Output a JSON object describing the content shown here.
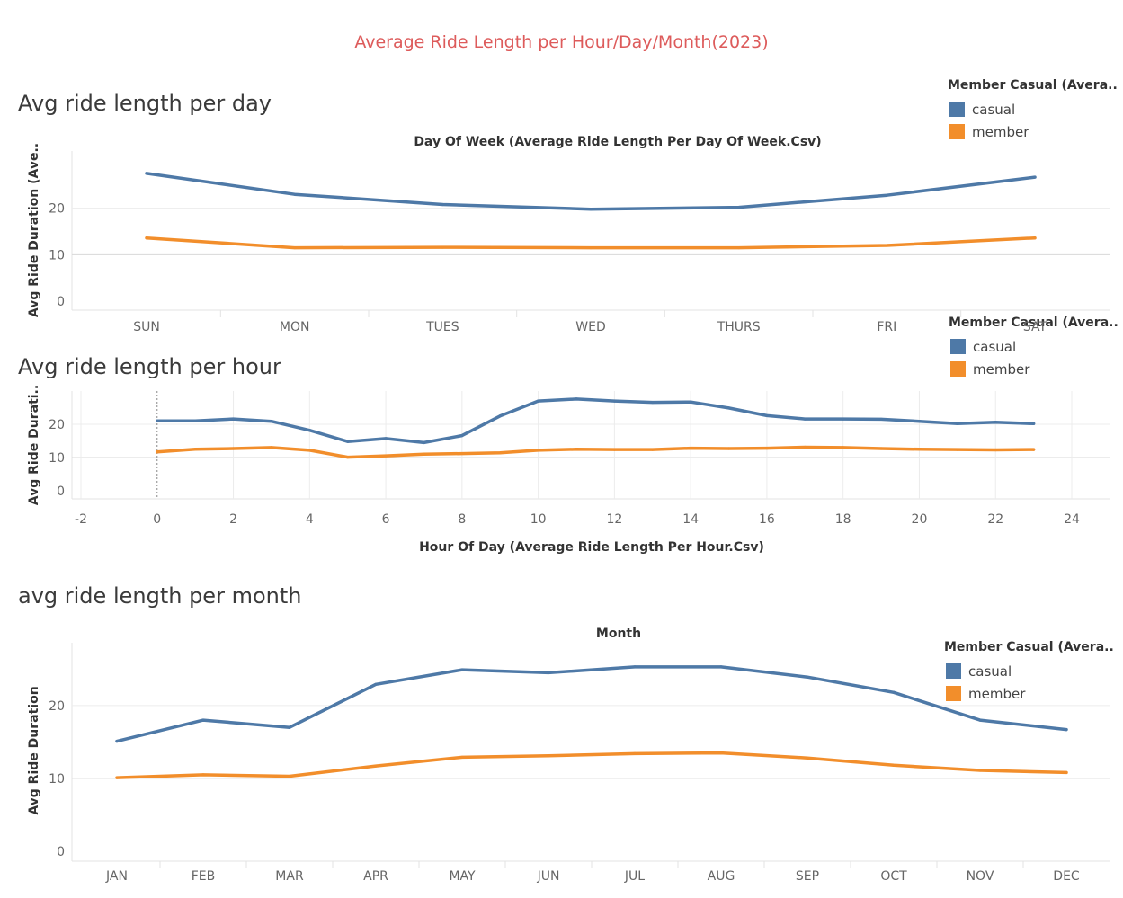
{
  "dashboard": {
    "title": "Average Ride Length per Hour/Day/Month(2023)"
  },
  "legend": {
    "title": "Member Casual (Avera..",
    "items": [
      {
        "label": "casual",
        "color": "#4e79a7"
      },
      {
        "label": "member",
        "color": "#f28e2b"
      }
    ]
  },
  "chart_data": [
    {
      "id": "day",
      "type": "line",
      "section_title": "Avg ride length per day",
      "title": "Day Of Week (Average Ride Length Per Day Of Week.Csv)",
      "xlabel": "",
      "ylabel": "Avg Ride Duration (Ave..",
      "categories": [
        "SUN",
        "MON",
        "TUES",
        "WED",
        "THURS",
        "FRI",
        "SAT"
      ],
      "yticks": [
        0,
        10,
        20
      ],
      "ylim": [
        0,
        30
      ],
      "legend_position": "top-right",
      "series": [
        {
          "name": "casual",
          "color": "#4e79a7",
          "values": [
            27.5,
            23.0,
            20.8,
            19.8,
            20.2,
            22.8,
            26.7
          ]
        },
        {
          "name": "member",
          "color": "#f28e2b",
          "values": [
            13.6,
            11.5,
            11.6,
            11.5,
            11.5,
            12.0,
            13.6
          ]
        }
      ]
    },
    {
      "id": "hour",
      "type": "line",
      "section_title": "Avg ride length per hour",
      "title": "",
      "xlabel": "Hour Of Day (Average Ride Length Per Hour.Csv)",
      "ylabel": "Avg Ride Durati..",
      "xticks": [
        -2,
        0,
        2,
        4,
        6,
        8,
        10,
        12,
        14,
        16,
        18,
        20,
        22,
        24
      ],
      "xlim": [
        -2,
        24
      ],
      "yticks": [
        0,
        10,
        20
      ],
      "ylim": [
        0,
        30
      ],
      "grid": true,
      "legend_position": "top-right",
      "x": [
        0,
        1,
        2,
        3,
        4,
        5,
        6,
        7,
        8,
        9,
        10,
        11,
        12,
        13,
        14,
        15,
        16,
        17,
        18,
        19,
        20,
        21,
        22,
        23
      ],
      "series": [
        {
          "name": "casual",
          "color": "#4e79a7",
          "values": [
            21.0,
            21.0,
            21.6,
            20.9,
            18.2,
            14.8,
            15.7,
            14.5,
            16.6,
            22.5,
            27.0,
            27.6,
            27.0,
            26.6,
            26.7,
            24.9,
            22.6,
            21.6,
            21.6,
            21.5,
            20.9,
            20.2,
            20.6,
            20.2
          ]
        },
        {
          "name": "member",
          "color": "#f28e2b",
          "values": [
            11.7,
            12.5,
            12.7,
            13.0,
            12.2,
            10.1,
            10.5,
            11.0,
            11.2,
            11.4,
            12.2,
            12.5,
            12.4,
            12.4,
            12.8,
            12.7,
            12.8,
            13.1,
            13.0,
            12.7,
            12.5,
            12.4,
            12.3,
            12.4
          ]
        }
      ]
    },
    {
      "id": "month",
      "type": "line",
      "section_title": "avg ride length per month",
      "title": "Month",
      "xlabel": "",
      "ylabel": "Avg Ride Duration",
      "categories": [
        "JAN",
        "FEB",
        "MAR",
        "APR",
        "MAY",
        "JUN",
        "JUL",
        "AUG",
        "SEP",
        "OCT",
        "NOV",
        "DEC"
      ],
      "yticks": [
        0,
        10,
        20
      ],
      "ylim": [
        0,
        28
      ],
      "legend_position": "top-right",
      "series": [
        {
          "name": "casual",
          "color": "#4e79a7",
          "values": [
            15.1,
            18.0,
            17.0,
            22.9,
            24.9,
            24.5,
            25.3,
            25.3,
            23.9,
            21.8,
            18.0,
            16.7
          ]
        },
        {
          "name": "member",
          "color": "#f28e2b",
          "values": [
            10.1,
            10.5,
            10.3,
            11.7,
            12.9,
            13.1,
            13.4,
            13.5,
            12.8,
            11.8,
            11.1,
            10.8
          ]
        }
      ]
    }
  ]
}
